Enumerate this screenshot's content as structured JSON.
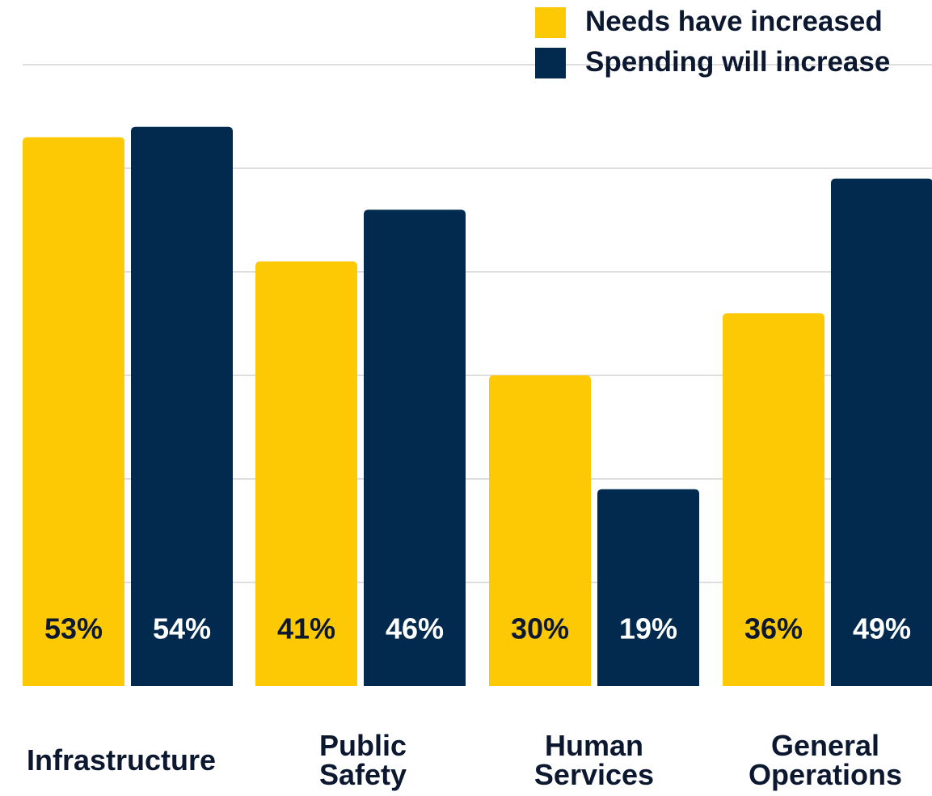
{
  "chart_data": {
    "type": "bar",
    "title": "",
    "xlabel": "",
    "ylabel": "",
    "categories": [
      "Infrastructure",
      "Public Safety",
      "Human Services",
      "General Operations"
    ],
    "category_lines": [
      [
        "Infrastructure"
      ],
      [
        "Public",
        "Safety"
      ],
      [
        "Human",
        "Services"
      ],
      [
        "General",
        "Operations"
      ]
    ],
    "series": [
      {
        "name": "Needs have increased",
        "color": "#fdc905",
        "label_color": "#0b1830",
        "values": [
          53,
          41,
          30,
          36
        ],
        "labels": [
          "53%",
          "41%",
          "30%",
          "36%"
        ]
      },
      {
        "name": "Spending will increase",
        "color": "#012a4e",
        "label_color": "#ffffff",
        "values": [
          54,
          46,
          19,
          49
        ],
        "labels": [
          "54%",
          "46%",
          "19%",
          "49%"
        ]
      }
    ],
    "ylim": [
      0,
      60
    ],
    "grid": true,
    "gridline_values": [
      10,
      20,
      30,
      40,
      50,
      60
    ],
    "legend_position": "top-right"
  }
}
